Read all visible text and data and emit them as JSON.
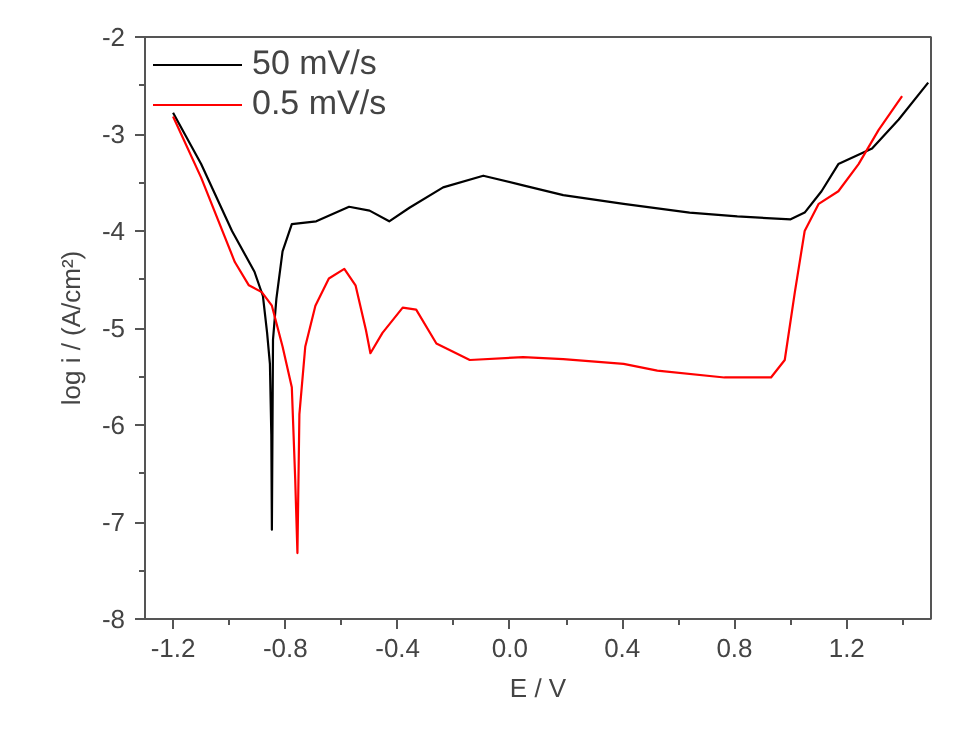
{
  "chart_data": {
    "type": "line",
    "xlabel": "E / V",
    "ylabel": "log i / (A/cm²)",
    "xlim": [
      -1.3,
      1.5
    ],
    "ylim": [
      -8,
      -2
    ],
    "xticks": [
      -1.2,
      {
        "value": -1.0,
        "label": null
      },
      -0.8,
      {
        "value": -0.6,
        "label": null
      },
      -0.4,
      {
        "value": -0.2,
        "label": null
      },
      {
        "value": 0.0,
        "label": "0.0"
      },
      {
        "value": 0.2,
        "label": null
      },
      0.4,
      {
        "value": 0.6,
        "label": null
      },
      0.8,
      {
        "value": 1.0,
        "label": null
      },
      1.2,
      {
        "value": 1.4,
        "label": null
      }
    ],
    "yticks": [
      -8,
      {
        "value": -7.5,
        "label": null
      },
      -7,
      {
        "value": -6.5,
        "label": null
      },
      -6,
      {
        "value": -5.5,
        "label": null
      },
      -5,
      {
        "value": -4.5,
        "label": null
      },
      -4,
      {
        "value": -3.5,
        "label": null
      },
      -3,
      {
        "value": -2.5,
        "label": null
      },
      -2
    ],
    "grid": false,
    "legend": "top left",
    "line_style": "solid",
    "marker": "none",
    "series": [
      {
        "name": "50 mV/s",
        "color": "#000000",
        "x": [
          -1.2,
          -1.1,
          -0.99,
          -0.91,
          -0.88,
          -0.865,
          -0.855,
          -0.85,
          -0.848,
          -0.844,
          -0.832,
          -0.81,
          -0.777,
          -0.69,
          -0.573,
          -0.5,
          -0.43,
          -0.358,
          -0.238,
          -0.095,
          0.047,
          0.19,
          0.405,
          0.64,
          0.81,
          1.0,
          1.05,
          1.11,
          1.17,
          1.29,
          1.385,
          1.49
        ],
        "values": [
          -2.78,
          -3.31,
          -4.0,
          -4.42,
          -4.67,
          -5.05,
          -5.37,
          -6.1,
          -7.08,
          -5.12,
          -4.7,
          -4.21,
          -3.93,
          -3.9,
          -3.75,
          -3.79,
          -3.9,
          -3.76,
          -3.55,
          -3.43,
          -3.53,
          -3.63,
          -3.72,
          -3.81,
          -3.85,
          -3.88,
          -3.81,
          -3.59,
          -3.31,
          -3.15,
          -2.85,
          -2.47
        ]
      },
      {
        "name": "0.5 mV/s",
        "color": "#ff0000",
        "x": [
          -1.2,
          -1.1,
          -0.98,
          -0.93,
          -0.884,
          -0.848,
          -0.81,
          -0.777,
          -0.765,
          -0.757,
          -0.75,
          -0.729,
          -0.693,
          -0.645,
          -0.59,
          -0.55,
          -0.513,
          -0.497,
          -0.454,
          -0.382,
          -0.334,
          -0.262,
          -0.143,
          0.047,
          0.19,
          0.405,
          0.525,
          0.764,
          0.93,
          0.979,
          1.015,
          1.05,
          1.1,
          1.17,
          1.242,
          1.313,
          1.397
        ],
        "values": [
          -2.82,
          -3.45,
          -4.32,
          -4.56,
          -4.63,
          -4.77,
          -5.19,
          -5.61,
          -6.55,
          -7.32,
          -5.89,
          -5.19,
          -4.77,
          -4.49,
          -4.39,
          -4.56,
          -5.02,
          -5.26,
          -5.05,
          -4.79,
          -4.81,
          -5.16,
          -5.33,
          -5.3,
          -5.32,
          -5.37,
          -5.44,
          -5.51,
          -5.51,
          -5.33,
          -4.63,
          -4.0,
          -3.72,
          -3.59,
          -3.31,
          -2.96,
          -2.61
        ]
      }
    ]
  }
}
